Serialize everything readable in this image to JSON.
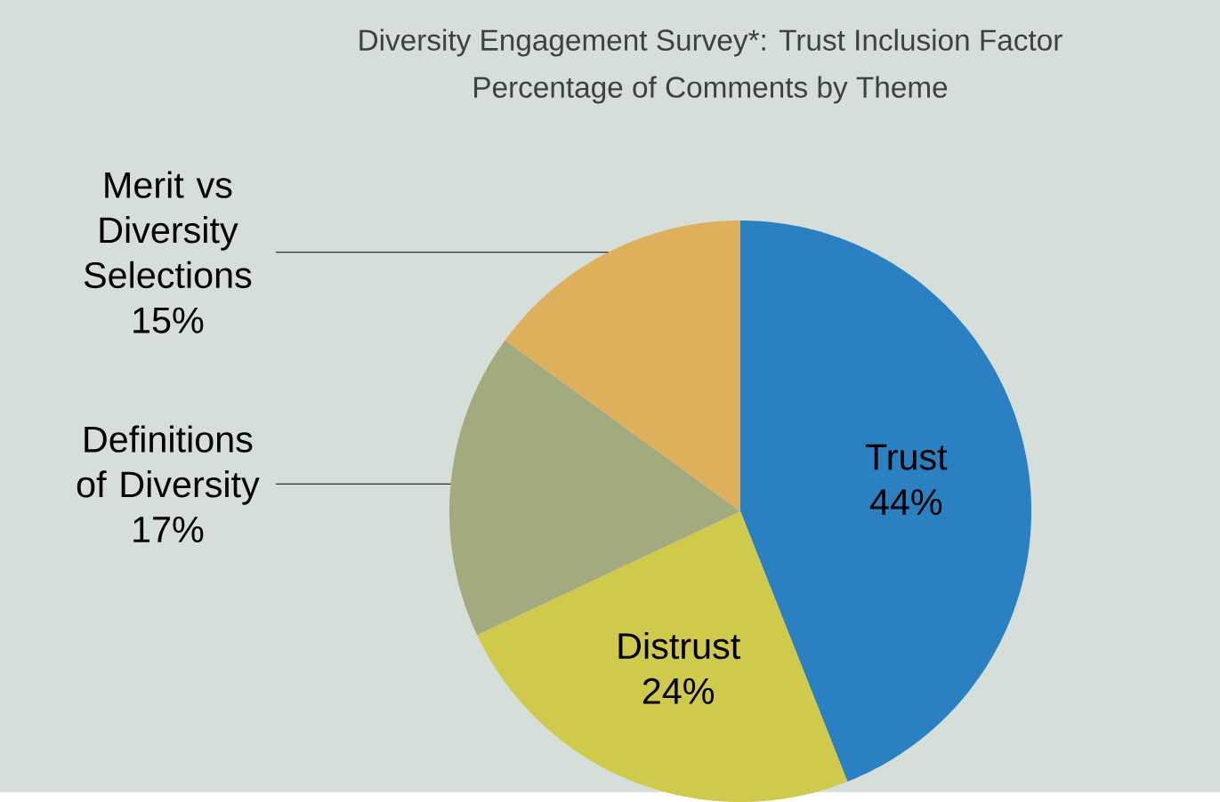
{
  "chart_data": {
    "type": "pie",
    "title": "Diversity Engagement Survey*: Trust Inclusion Factor",
    "subtitle": "Percentage of Comments by Theme",
    "categories": [
      "Trust",
      "Distrust",
      "Definitions of Diversity",
      "Merit vs Diversity Selections"
    ],
    "values": [
      44,
      24,
      17,
      15
    ],
    "value_labels": [
      "44%",
      "24%",
      "17%",
      "15%"
    ],
    "colors": [
      "#2a80c0",
      "#cfc94c",
      "#a3ab7e",
      "#dfb05c"
    ]
  }
}
